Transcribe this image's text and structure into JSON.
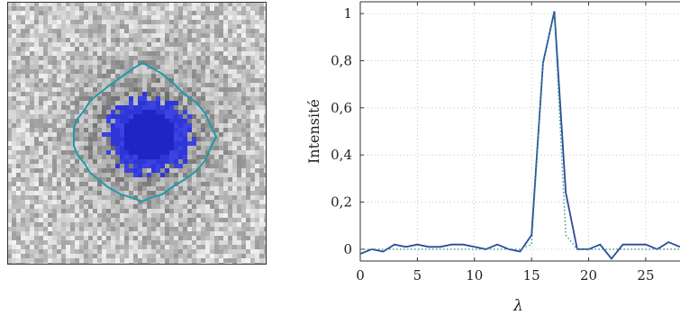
{
  "image_panel": {
    "description_colors": {
      "noise_light": "#d9d9d9",
      "noise_dark": "#6f6f6f",
      "contour": "#1f9aa8",
      "segmentation": "#2b2fd6",
      "frame": "#333333"
    }
  },
  "chart_data": {
    "type": "line",
    "title": "",
    "xlabel": "λ",
    "ylabel": "Intensité",
    "xlim": [
      0,
      28
    ],
    "ylim": [
      -0.05,
      1.05
    ],
    "xticks": [
      0,
      5,
      10,
      15,
      20,
      25
    ],
    "xtick_labels": [
      "0",
      "5",
      "10",
      "15",
      "20",
      "25"
    ],
    "yticks": [
      0,
      0.2,
      0.4,
      0.6,
      0.8,
      1
    ],
    "ytick_labels": [
      "0",
      "0,2",
      "0,4",
      "0,6",
      "0,8",
      "1"
    ],
    "grid": true,
    "legend": "none",
    "series": [
      {
        "style": "solid",
        "color": "#2c4a9a",
        "x": [
          0,
          1,
          2,
          3,
          4,
          5,
          6,
          7,
          8,
          9,
          10,
          11,
          12,
          13,
          14,
          15,
          16,
          17,
          18,
          19,
          20,
          21,
          22,
          23,
          24,
          25,
          26,
          27,
          28
        ],
        "y": [
          -0.02,
          0.0,
          -0.01,
          0.02,
          0.01,
          0.02,
          0.01,
          0.01,
          0.02,
          0.02,
          0.01,
          0.0,
          0.02,
          0.0,
          -0.01,
          0.06,
          0.79,
          1.01,
          0.24,
          0.0,
          0.0,
          0.02,
          -0.04,
          0.02,
          0.02,
          0.02,
          0.0,
          0.03,
          0.01
        ]
      },
      {
        "style": "dotted",
        "color": "#2a9a8a",
        "x": [
          0,
          14,
          15,
          16,
          17,
          18,
          19,
          28
        ],
        "y": [
          0,
          0,
          0.02,
          0.8,
          1.0,
          0.06,
          0,
          0
        ]
      }
    ]
  }
}
